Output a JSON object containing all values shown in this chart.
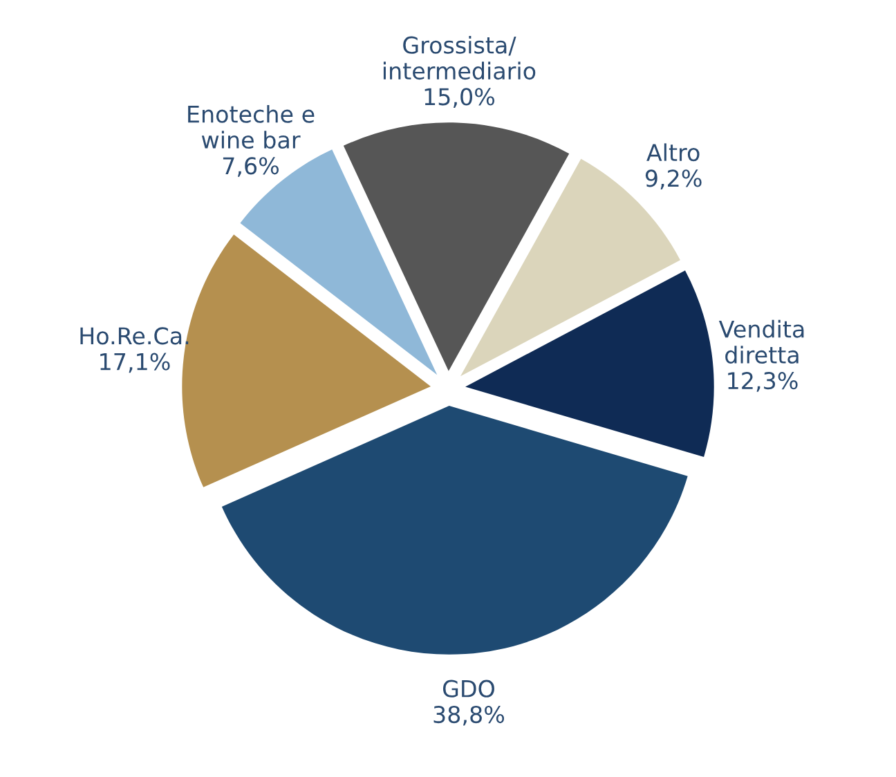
{
  "chart_data": {
    "type": "pie",
    "categories": [
      "Grossista/\nintermediario",
      "Altro",
      "Vendita\ndiretta",
      "GDO",
      "Ho.Re.Ca.",
      "Enoteche e\nwine bar"
    ],
    "values": [
      15.0,
      9.2,
      12.3,
      38.8,
      17.1,
      7.6
    ],
    "value_labels": [
      "15,0%",
      "9,2%",
      "12,3%",
      "38,8%",
      "17,1%",
      "7,6%"
    ],
    "colors": [
      "#565656",
      "#dbd5bb",
      "#0f2b55",
      "#1e4a72",
      "#b5904f",
      "#8fb8d8"
    ]
  }
}
